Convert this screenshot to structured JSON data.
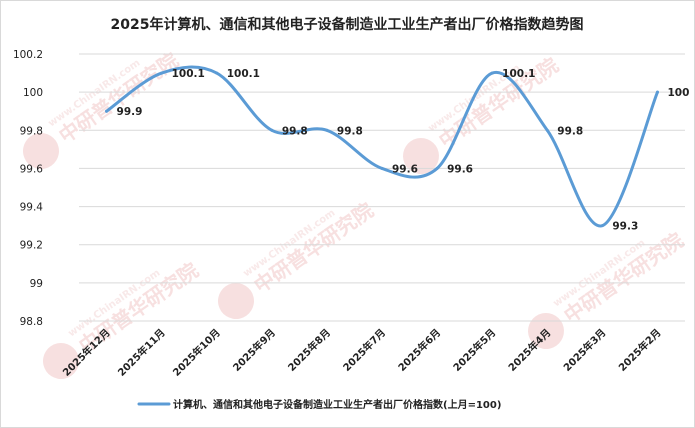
{
  "chart_data": {
    "type": "line",
    "title": "2025年计算机、通信和其他电子设备制造业工业生产者出厂价格指数趋势图",
    "categories": [
      "2025年12月",
      "2025年11月",
      "2025年10月",
      "2025年9月",
      "2025年8月",
      "2025年7月",
      "2025年6月",
      "2025年5月",
      "2025年4月",
      "2025年3月",
      "2025年2月"
    ],
    "series": [
      {
        "name": "计算机、通信和其他电子设备制造业工业生产者出厂价格指数(上月=100)",
        "values": [
          99.9,
          100.1,
          100.1,
          99.8,
          99.8,
          99.6,
          99.6,
          100.1,
          99.8,
          99.3,
          100
        ],
        "labels": [
          "99.9",
          "100.1",
          "100.1",
          "99.8",
          "99.8",
          "99.6",
          "99.6",
          "100.1",
          "99.8",
          "99.3",
          "100"
        ],
        "color": "#5b9bd5"
      }
    ],
    "ylim": [
      98.8,
      100.2
    ],
    "yticks": [
      98.8,
      99,
      99.2,
      99.4,
      99.6,
      99.8,
      100,
      100.2
    ],
    "ytick_labels": [
      "98.8",
      "99",
      "99.2",
      "99.4",
      "99.6",
      "99.8",
      "100",
      "100.2"
    ],
    "grid": true,
    "legend": "bottom",
    "smooth": true
  },
  "watermark": {
    "text": "中研普华研究院",
    "url": "www.ChinaIRN.com",
    "logo": "CIRN",
    "color": "#e8a0a0"
  }
}
